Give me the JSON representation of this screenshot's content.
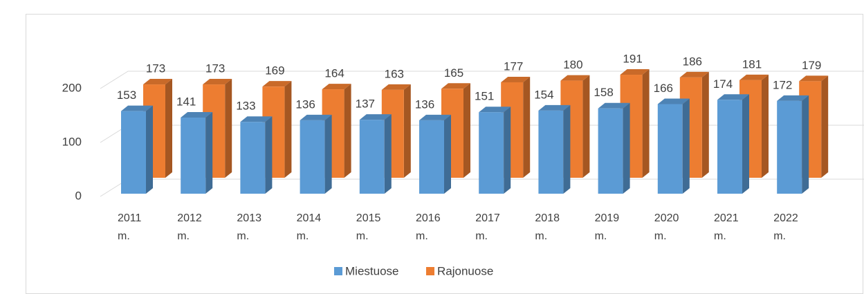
{
  "chart_data": {
    "type": "bar3d",
    "categories": [
      "2011 m.",
      "2012 m.",
      "2013 m.",
      "2014 m.",
      "2015 m.",
      "2016 m.",
      "2017 m.",
      "2018 m.",
      "2019 m.",
      "2020 m.",
      "2021 m.",
      "2022 m."
    ],
    "series": [
      {
        "name": "Miestuose",
        "color": "#5b9bd5",
        "values": [
          153,
          141,
          133,
          136,
          137,
          136,
          151,
          154,
          158,
          166,
          174,
          172
        ]
      },
      {
        "name": "Rajonuose",
        "color": "#ed7d31",
        "values": [
          173,
          173,
          169,
          164,
          163,
          165,
          177,
          180,
          191,
          186,
          181,
          179
        ]
      }
    ],
    "ylim": [
      0,
      250
    ],
    "yticks": [
      0,
      100,
      200
    ],
    "grid": true,
    "legend": "bottom"
  }
}
